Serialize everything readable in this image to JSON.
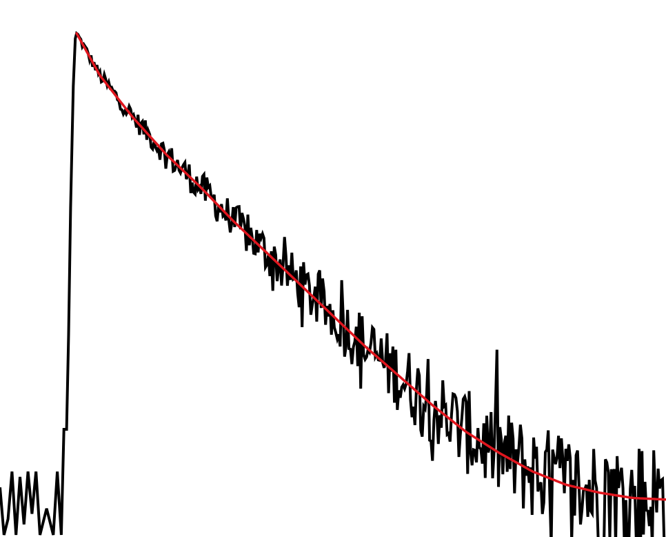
{
  "chart_data": {
    "type": "line",
    "title": "",
    "xlabel": "",
    "ylabel": "",
    "xlim": [
      0,
      1000
    ],
    "ylim": [
      0,
      1
    ],
    "grid": false,
    "legend": "none",
    "colors": {
      "data": "#000000",
      "fit": "#e0161e",
      "background": "#ffffff"
    },
    "series": [
      {
        "kind": "measured-decay",
        "peak": {
          "x": 115,
          "y": 0.95
        },
        "rise": [
          [
            0,
            0.09
          ],
          [
            6,
            0.0
          ],
          [
            12,
            0.03
          ],
          [
            18,
            0.12
          ],
          [
            24,
            0.0
          ],
          [
            30,
            0.11
          ],
          [
            36,
            0.02
          ],
          [
            42,
            0.12
          ],
          [
            48,
            0.04
          ],
          [
            54,
            0.12
          ],
          [
            60,
            0.0
          ],
          [
            70,
            0.05
          ],
          [
            80,
            0.0
          ],
          [
            86,
            0.12
          ],
          [
            92,
            0.0
          ],
          [
            96,
            0.2
          ],
          [
            100,
            0.2
          ],
          [
            103,
            0.38
          ],
          [
            106,
            0.62
          ],
          [
            110,
            0.85
          ],
          [
            113,
            0.94
          ],
          [
            115,
            0.95
          ]
        ],
        "baseline_noise_amplitude": 0.09
      },
      {
        "kind": "exponential-fit",
        "x": [
          115,
          150,
          200,
          250,
          300,
          350,
          400,
          450,
          500,
          550,
          600,
          650,
          700,
          750,
          800,
          850,
          900,
          950,
          1000
        ],
        "y": [
          0.95,
          0.87,
          0.79,
          0.72,
          0.66,
          0.595,
          0.535,
          0.475,
          0.415,
          0.355,
          0.3,
          0.245,
          0.195,
          0.155,
          0.12,
          0.095,
          0.08,
          0.07,
          0.067
        ]
      }
    ]
  }
}
